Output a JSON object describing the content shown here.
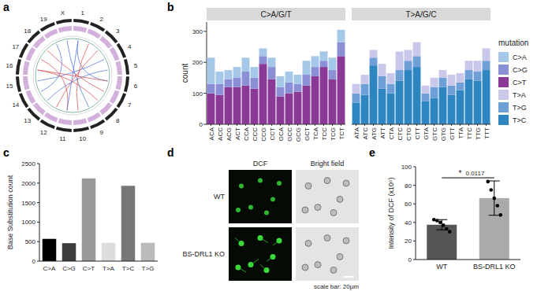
{
  "circos": {
    "panel": "a",
    "chromosomes": [
      "1",
      "2",
      "3",
      "4",
      "5",
      "6",
      "7",
      "8",
      "9",
      "10",
      "11",
      "12",
      "13",
      "14",
      "15",
      "16",
      "17",
      "18",
      "19",
      "X"
    ]
  },
  "images": {
    "panel": "d",
    "columns": [
      "DCF",
      "Bright field"
    ],
    "rows": [
      "WT",
      "BS-DRL1 KO"
    ],
    "scale_bar": "scale bar: 20µm"
  },
  "chart_data": [
    {
      "type": "bar",
      "panel": "b",
      "y_label": "count",
      "stacked": true,
      "grid": false,
      "legend": "right",
      "legend_title": "mutation",
      "ylim": [
        0,
        330
      ],
      "yticks": [
        0,
        100,
        200,
        300
      ],
      "facets": [
        {
          "title": "C>A/G/T",
          "categories": [
            "ACA",
            "ACC",
            "ACG",
            "ACT",
            "CCA",
            "CCC",
            "CCG",
            "CCT",
            "GCA",
            "GCC",
            "GCG",
            "GCT",
            "TCA",
            "TCC",
            "TCG",
            "TCT"
          ],
          "series": [
            {
              "name": "C>T",
              "color": "#8a3a96",
              "values": [
                100,
                95,
                120,
                120,
                125,
                115,
                195,
                145,
                90,
                100,
                105,
                125,
                155,
                185,
                145,
                220
              ]
            },
            {
              "name": "C>G",
              "color": "#8b8fd6",
              "values": [
                30,
                35,
                25,
                30,
                45,
                35,
                25,
                40,
                30,
                35,
                25,
                35,
                30,
                20,
                30,
                45
              ]
            },
            {
              "name": "C>A",
              "color": "#a6c8e8",
              "values": [
                85,
                40,
                30,
                35,
                45,
                35,
                25,
                30,
                35,
                35,
                30,
                45,
                35,
                30,
                40,
                40
              ]
            }
          ]
        },
        {
          "title": "T>A/G/C",
          "categories": [
            "ATA",
            "ATC",
            "ATG",
            "ATT",
            "CTA",
            "CTC",
            "CTG",
            "CTT",
            "GTA",
            "GTC",
            "GTG",
            "GTT",
            "TTA",
            "TTC",
            "TTG",
            "TTT"
          ],
          "series": [
            {
              "name": "T>C",
              "color": "#2e86c1",
              "values": [
                70,
                95,
                190,
                115,
                100,
                140,
                175,
                185,
                75,
                85,
                120,
                95,
                110,
                145,
                140,
                175
              ]
            },
            {
              "name": "T>G",
              "color": "#6e9fd6",
              "values": [
                30,
                35,
                25,
                40,
                30,
                35,
                30,
                35,
                25,
                35,
                30,
                30,
                25,
                30,
                30,
                30
              ]
            },
            {
              "name": "T>A",
              "color": "#c9c8ea",
              "values": [
                30,
                30,
                25,
                40,
                35,
                60,
                35,
                45,
                25,
                30,
                25,
                35,
                30,
                30,
                35,
                40
              ]
            }
          ]
        }
      ]
    },
    {
      "type": "bar",
      "panel": "c",
      "y_label": "Base Substitution count",
      "grid": false,
      "categories": [
        "C>A",
        "C>G",
        "C>T",
        "T>A",
        "T>C",
        "T>G"
      ],
      "values": [
        570,
        460,
        2120,
        470,
        1930,
        470
      ],
      "colors": [
        "#000000",
        "#3d3d3d",
        "#999999",
        "#dddddd",
        "#777777",
        "#bbbbbb"
      ],
      "ylim": [
        0,
        2500
      ],
      "yticks": [
        0,
        500,
        1000,
        1500,
        2000,
        2500
      ]
    },
    {
      "type": "bar",
      "panel": "e",
      "y_label": "Intensity of DCF (x10⁶)",
      "grid": false,
      "categories": [
        "WT",
        "BS-DRL1 KO"
      ],
      "values": [
        37.5,
        66.2
      ],
      "error": [
        5.5,
        18.5
      ],
      "points": [
        [
          43,
          42,
          40,
          37,
          33,
          30
        ],
        [
          84,
          75,
          66,
          58,
          48
        ]
      ],
      "colors": [
        "#555555",
        "#aaaaaa"
      ],
      "ylim": [
        0,
        100
      ],
      "yticks": [
        0,
        20,
        40,
        60,
        80,
        100
      ],
      "annotations": [
        "*",
        "0.0117"
      ]
    }
  ]
}
